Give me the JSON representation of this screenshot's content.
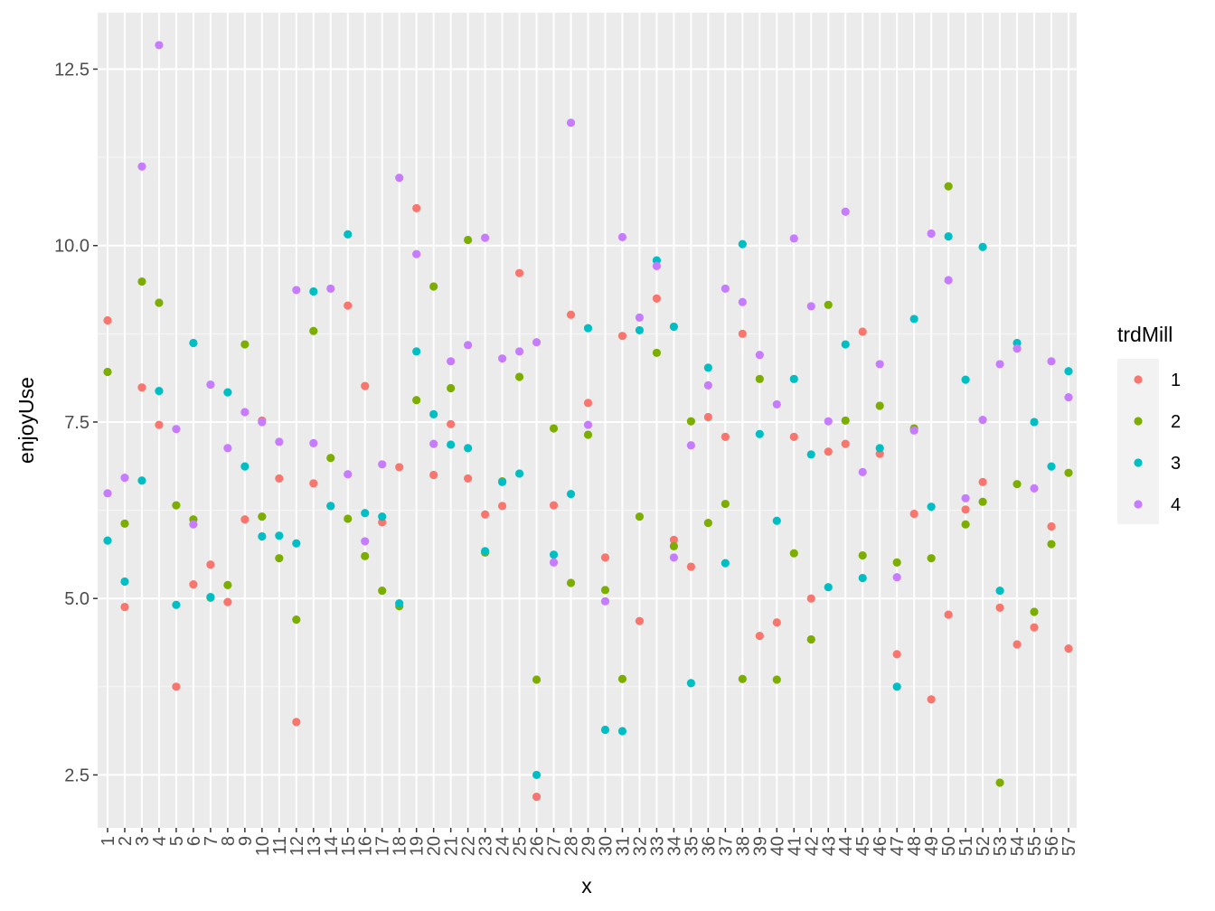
{
  "chart_data": {
    "type": "scatter",
    "xlabel": "x",
    "ylabel": "enjoyUse",
    "x_categories": [
      "1",
      "2",
      "3",
      "4",
      "5",
      "6",
      "7",
      "8",
      "9",
      "10",
      "11",
      "12",
      "13",
      "14",
      "15",
      "16",
      "17",
      "18",
      "19",
      "20",
      "21",
      "22",
      "23",
      "24",
      "25",
      "26",
      "27",
      "28",
      "29",
      "30",
      "31",
      "32",
      "33",
      "34",
      "35",
      "36",
      "37",
      "38",
      "39",
      "40",
      "41",
      "42",
      "43",
      "44",
      "45",
      "46",
      "47",
      "48",
      "49",
      "50",
      "51",
      "52",
      "53",
      "54",
      "55",
      "56",
      "57"
    ],
    "ylim": [
      1.75,
      13.3
    ],
    "y_ticks": [
      2.5,
      5.0,
      7.5,
      10.0,
      12.5
    ],
    "y_tick_labels": [
      "2.5",
      "5.0",
      "7.5",
      "10.0",
      "12.5"
    ],
    "grid": true,
    "panel_background": "#ebebeb",
    "legend": {
      "title": "trdMill",
      "position": "right"
    },
    "series": [
      {
        "name": "1",
        "color": "#F8766D",
        "values": [
          8.94,
          4.88,
          7.99,
          7.46,
          3.75,
          5.2,
          5.48,
          4.95,
          6.12,
          7.52,
          6.7,
          3.25,
          6.63,
          6.31,
          9.15,
          8.01,
          6.08,
          6.86,
          10.53,
          6.75,
          7.47,
          6.7,
          6.19,
          6.31,
          9.61,
          2.19,
          6.32,
          9.02,
          7.77,
          5.58,
          8.72,
          4.68,
          9.25,
          5.83,
          5.45,
          7.57,
          7.29,
          8.75,
          4.47,
          4.66,
          7.29,
          5.0,
          7.08,
          7.19,
          8.78,
          7.05,
          4.21,
          6.2,
          3.57,
          4.77,
          6.26,
          6.65,
          4.87,
          4.35,
          4.59,
          6.02,
          4.29
        ]
      },
      {
        "name": "2",
        "color": "#7CAE00",
        "values": [
          8.21,
          6.06,
          9.49,
          9.19,
          6.32,
          6.12,
          5.01,
          5.19,
          8.6,
          6.16,
          5.57,
          4.7,
          8.79,
          6.99,
          6.13,
          5.6,
          5.11,
          4.89,
          7.81,
          9.42,
          7.98,
          10.08,
          5.65,
          6.66,
          8.14,
          3.85,
          7.41,
          5.22,
          7.32,
          5.12,
          3.86,
          6.16,
          8.48,
          5.74,
          7.51,
          6.07,
          6.34,
          3.86,
          8.11,
          3.85,
          5.64,
          4.42,
          9.16,
          7.52,
          5.61,
          7.73,
          5.51,
          7.41,
          5.57,
          10.84,
          6.05,
          6.37,
          2.39,
          6.62,
          4.81,
          5.77,
          6.78
        ]
      },
      {
        "name": "3",
        "color": "#00BFC4",
        "values": [
          5.82,
          5.24,
          6.67,
          7.94,
          4.91,
          8.62,
          5.02,
          7.92,
          6.87,
          5.88,
          5.89,
          5.78,
          9.35,
          6.31,
          10.16,
          6.21,
          6.16,
          4.93,
          8.5,
          7.61,
          7.18,
          7.13,
          5.67,
          6.65,
          6.77,
          2.5,
          5.62,
          6.48,
          8.83,
          3.14,
          3.12,
          8.8,
          9.79,
          8.85,
          3.8,
          8.27,
          5.5,
          10.02,
          7.33,
          6.1,
          8.11,
          7.04,
          5.16,
          8.6,
          5.29,
          7.13,
          3.75,
          8.96,
          6.3,
          10.13,
          8.1,
          9.98,
          5.11,
          8.62,
          7.5,
          6.87,
          8.22
        ]
      },
      {
        "name": "4",
        "color": "#C77CFF",
        "values": [
          6.49,
          6.71,
          11.12,
          12.84,
          7.4,
          6.05,
          8.03,
          7.13,
          7.64,
          7.5,
          7.22,
          9.37,
          7.2,
          9.39,
          6.76,
          5.81,
          6.9,
          10.96,
          9.88,
          7.19,
          8.36,
          8.59,
          10.11,
          8.4,
          8.5,
          8.63,
          5.51,
          11.74,
          7.46,
          4.96,
          10.12,
          8.98,
          9.71,
          5.58,
          7.17,
          8.02,
          9.39,
          9.2,
          8.45,
          7.75,
          10.1,
          9.14,
          7.51,
          10.48,
          6.79,
          8.32,
          5.3,
          7.38,
          10.17,
          9.51,
          6.42,
          7.53,
          8.32,
          8.54,
          6.56,
          8.36,
          7.85
        ]
      }
    ]
  }
}
